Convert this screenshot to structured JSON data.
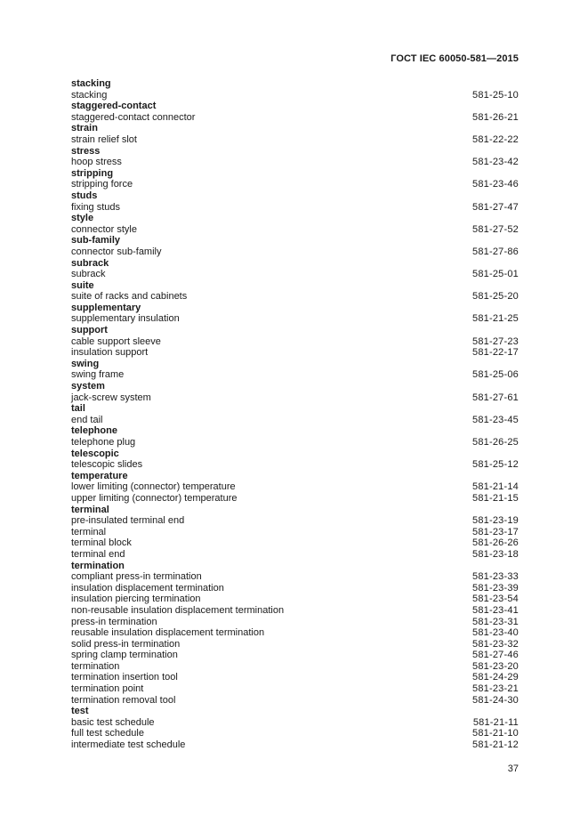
{
  "document": {
    "header": "ГОСТ IEC 60050-581—2015",
    "page_number": "37"
  },
  "index": {
    "sections": [
      {
        "heading": "stacking",
        "entries": [
          {
            "term": "stacking",
            "code": "581-25-10"
          }
        ]
      },
      {
        "heading": "staggered-contact",
        "entries": [
          {
            "term": "staggered-contact connector",
            "code": "581-26-21"
          }
        ]
      },
      {
        "heading": "strain",
        "entries": [
          {
            "term": "strain relief slot",
            "code": "581-22-22"
          }
        ]
      },
      {
        "heading": "stress",
        "entries": [
          {
            "term": "hoop stress",
            "code": "581-23-42"
          }
        ]
      },
      {
        "heading": "stripping",
        "entries": [
          {
            "term": "stripping force",
            "code": "581-23-46"
          }
        ]
      },
      {
        "heading": "studs",
        "entries": [
          {
            "term": "fixing studs",
            "code": "581-27-47"
          }
        ]
      },
      {
        "heading": "style",
        "entries": [
          {
            "term": "connector style",
            "code": "581-27-52"
          }
        ]
      },
      {
        "heading": "sub-family",
        "entries": [
          {
            "term": "connector sub-family",
            "code": "581-27-86"
          }
        ]
      },
      {
        "heading": "subrack",
        "entries": [
          {
            "term": "subrack",
            "code": "581-25-01"
          }
        ]
      },
      {
        "heading": "suite",
        "entries": [
          {
            "term": "suite of racks and cabinets",
            "code": "581-25-20"
          }
        ]
      },
      {
        "heading": "supplementary",
        "entries": [
          {
            "term": "supplementary insulation",
            "code": "581-21-25"
          }
        ]
      },
      {
        "heading": "support",
        "entries": [
          {
            "term": "cable support sleeve",
            "code": "581-27-23"
          },
          {
            "term": "insulation support",
            "code": "581-22-17"
          }
        ]
      },
      {
        "heading": "swing",
        "entries": [
          {
            "term": "swing frame",
            "code": "581-25-06"
          }
        ]
      },
      {
        "heading": "system",
        "entries": [
          {
            "term": "jack-screw system",
            "code": "581-27-61"
          }
        ]
      },
      {
        "heading": "tail",
        "entries": [
          {
            "term": "end tail",
            "code": "581-23-45"
          }
        ]
      },
      {
        "heading": "telephone",
        "entries": [
          {
            "term": "telephone plug",
            "code": "581-26-25"
          }
        ]
      },
      {
        "heading": "telescopic",
        "entries": [
          {
            "term": "telescopic slides",
            "code": "581-25-12"
          }
        ]
      },
      {
        "heading": "temperature",
        "entries": [
          {
            "term": "lower limiting (connector) temperature",
            "code": "581-21-14"
          },
          {
            "term": "upper limiting (connector) temperature",
            "code": "581-21-15"
          }
        ]
      },
      {
        "heading": "terminal",
        "entries": [
          {
            "term": "pre-insulated terminal end",
            "code": "581-23-19"
          },
          {
            "term": "terminal",
            "code": "581-23-17"
          },
          {
            "term": "terminal block",
            "code": "581-26-26"
          },
          {
            "term": "terminal end",
            "code": "581-23-18"
          }
        ]
      },
      {
        "heading": "termination",
        "entries": [
          {
            "term": "compliant press-in termination",
            "code": "581-23-33"
          },
          {
            "term": "insulation displacement termination",
            "code": "581-23-39"
          },
          {
            "term": "insulation piercing termination",
            "code": "581-23-54"
          },
          {
            "term": "non-reusable insulation displacement termination",
            "code": "581-23-41"
          },
          {
            "term": "press-in termination",
            "code": "581-23-31"
          },
          {
            "term": "reusable insulation displacement termination",
            "code": "581-23-40"
          },
          {
            "term": "solid press-in termination",
            "code": "581-23-32"
          },
          {
            "term": "spring clamp termination",
            "code": "581-27-46"
          },
          {
            "term": "termination",
            "code": "581-23-20"
          },
          {
            "term": "termination insertion tool",
            "code": "581-24-29"
          },
          {
            "term": "termination point",
            "code": "581-23-21"
          },
          {
            "term": "termination removal tool",
            "code": "581-24-30"
          }
        ]
      },
      {
        "heading": "test",
        "entries": [
          {
            "term": "basic test schedule",
            "code": "581-21-11"
          },
          {
            "term": "full test schedule",
            "code": "581-21-10"
          },
          {
            "term": "intermediate test schedule",
            "code": "581-21-12"
          }
        ]
      }
    ]
  }
}
